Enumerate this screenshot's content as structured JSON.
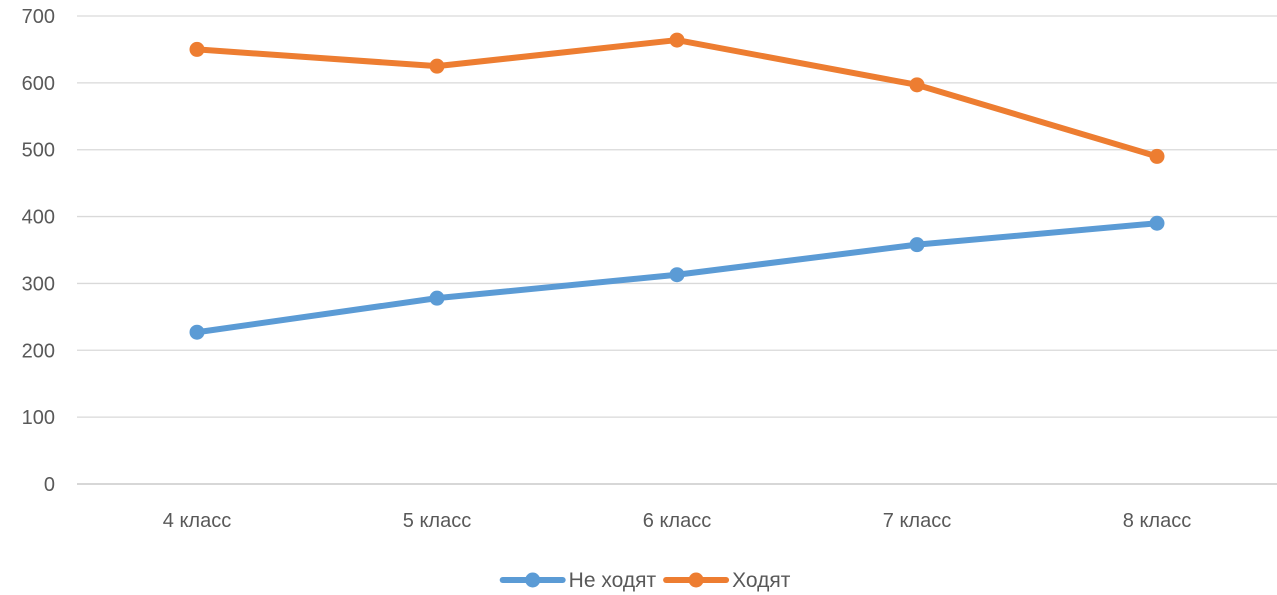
{
  "chart_data": {
    "type": "line",
    "categories": [
      "4 класс",
      "5 класс",
      "6 класс",
      "7 класс",
      "8 класс"
    ],
    "series": [
      {
        "name": "Не ходят",
        "color": "#5B9BD5",
        "values": [
          227,
          278,
          313,
          358,
          390
        ]
      },
      {
        "name": "Ходят",
        "color": "#ED7D31",
        "values": [
          650,
          625,
          664,
          597,
          490
        ]
      }
    ],
    "ylim": [
      0,
      700
    ],
    "yticks": [
      0,
      100,
      200,
      300,
      400,
      500,
      600,
      700
    ],
    "grid": true,
    "legend": "bottom",
    "title": "",
    "xlabel": "",
    "ylabel": ""
  }
}
